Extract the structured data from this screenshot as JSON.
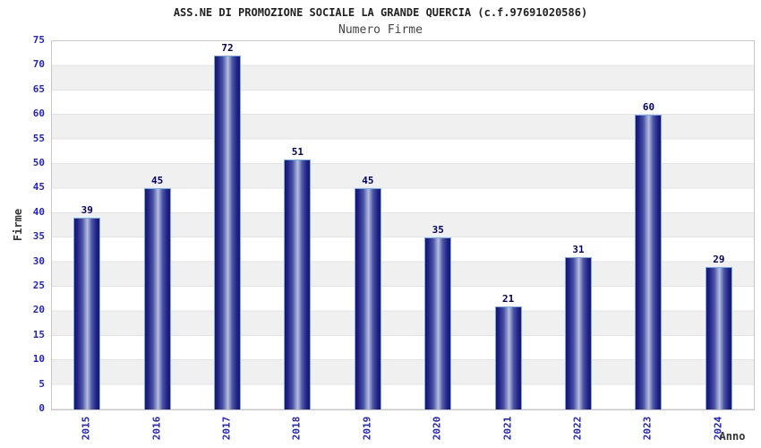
{
  "header": {
    "title": "ASS.NE DI PROMOZIONE SOCIALE LA GRANDE QUERCIA (c.f.97691020586)",
    "subtitle": "Numero Firme"
  },
  "chart_data": {
    "type": "bar",
    "title": "ASS.NE DI PROMOZIONE SOCIALE LA GRANDE QUERCIA (c.f.97691020586)",
    "subtitle": "Numero Firme",
    "categories": [
      "2015",
      "2016",
      "2017",
      "2018",
      "2019",
      "2020",
      "2021",
      "2022",
      "2023",
      "2024"
    ],
    "values": [
      39,
      45,
      72,
      51,
      45,
      35,
      21,
      31,
      60,
      29
    ],
    "xlabel": "Anno",
    "ylabel": "Firme",
    "ylim": [
      0,
      75
    ],
    "ytick_step": 5,
    "yticks": [
      0,
      5,
      10,
      15,
      20,
      25,
      30,
      35,
      40,
      45,
      50,
      55,
      60,
      65,
      70,
      75
    ],
    "grid": "horizontal-bands-alternating",
    "legend_position": "none",
    "value_labels": "above-bars"
  },
  "colors": {
    "axis_tick_blue": "#2222cc",
    "value_label_navy": "#000066",
    "bar_dark": "#171768",
    "bar_highlight": "#b7bfe0",
    "bar_border": "#77aaee",
    "band_gray": "#f0f0f0",
    "grid_line": "#e3e3e3",
    "plot_border": "#c8c8c8",
    "title_color": "#222222",
    "subtitle_color": "#444444"
  }
}
